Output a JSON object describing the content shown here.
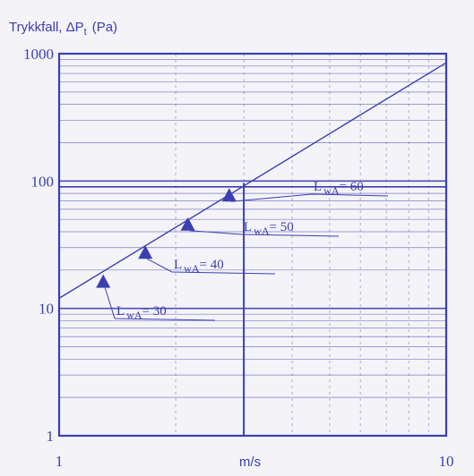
{
  "chart_data": {
    "type": "line",
    "title": "Trykkfall, ΔP",
    "title_sub": "t",
    "title_unit": "(Pa)",
    "xlabel": "m/s",
    "ylabel": "",
    "x_scale": "log",
    "y_scale": "log",
    "xlim": [
      1,
      10
    ],
    "ylim": [
      1,
      1000
    ],
    "x_ticks": [
      {
        "value": 1,
        "label": "1"
      },
      {
        "value": 10,
        "label": "10"
      }
    ],
    "y_ticks": [
      {
        "value": 1,
        "label": "1"
      },
      {
        "value": 10,
        "label": "10"
      },
      {
        "value": 100,
        "label": "100"
      },
      {
        "value": 1000,
        "label": "1000"
      }
    ],
    "grid": true,
    "line_color": "#3b3fb0",
    "series": [
      {
        "x": [
          1,
          10
        ],
        "y": [
          12,
          850
        ]
      }
    ],
    "markers": [
      {
        "x": 1.3,
        "y": 16,
        "label_prefix": "L",
        "label_sub": "wA",
        "label_value": "= 30"
      },
      {
        "x": 1.67,
        "y": 27,
        "label_prefix": "L",
        "label_sub": "wA",
        "label_value": "= 40"
      },
      {
        "x": 2.15,
        "y": 45,
        "label_prefix": "L",
        "label_sub": "wA",
        "label_value": "= 50"
      },
      {
        "x": 2.75,
        "y": 76,
        "label_prefix": "L",
        "label_sub": "wA",
        "label_value": "= 60"
      }
    ]
  }
}
